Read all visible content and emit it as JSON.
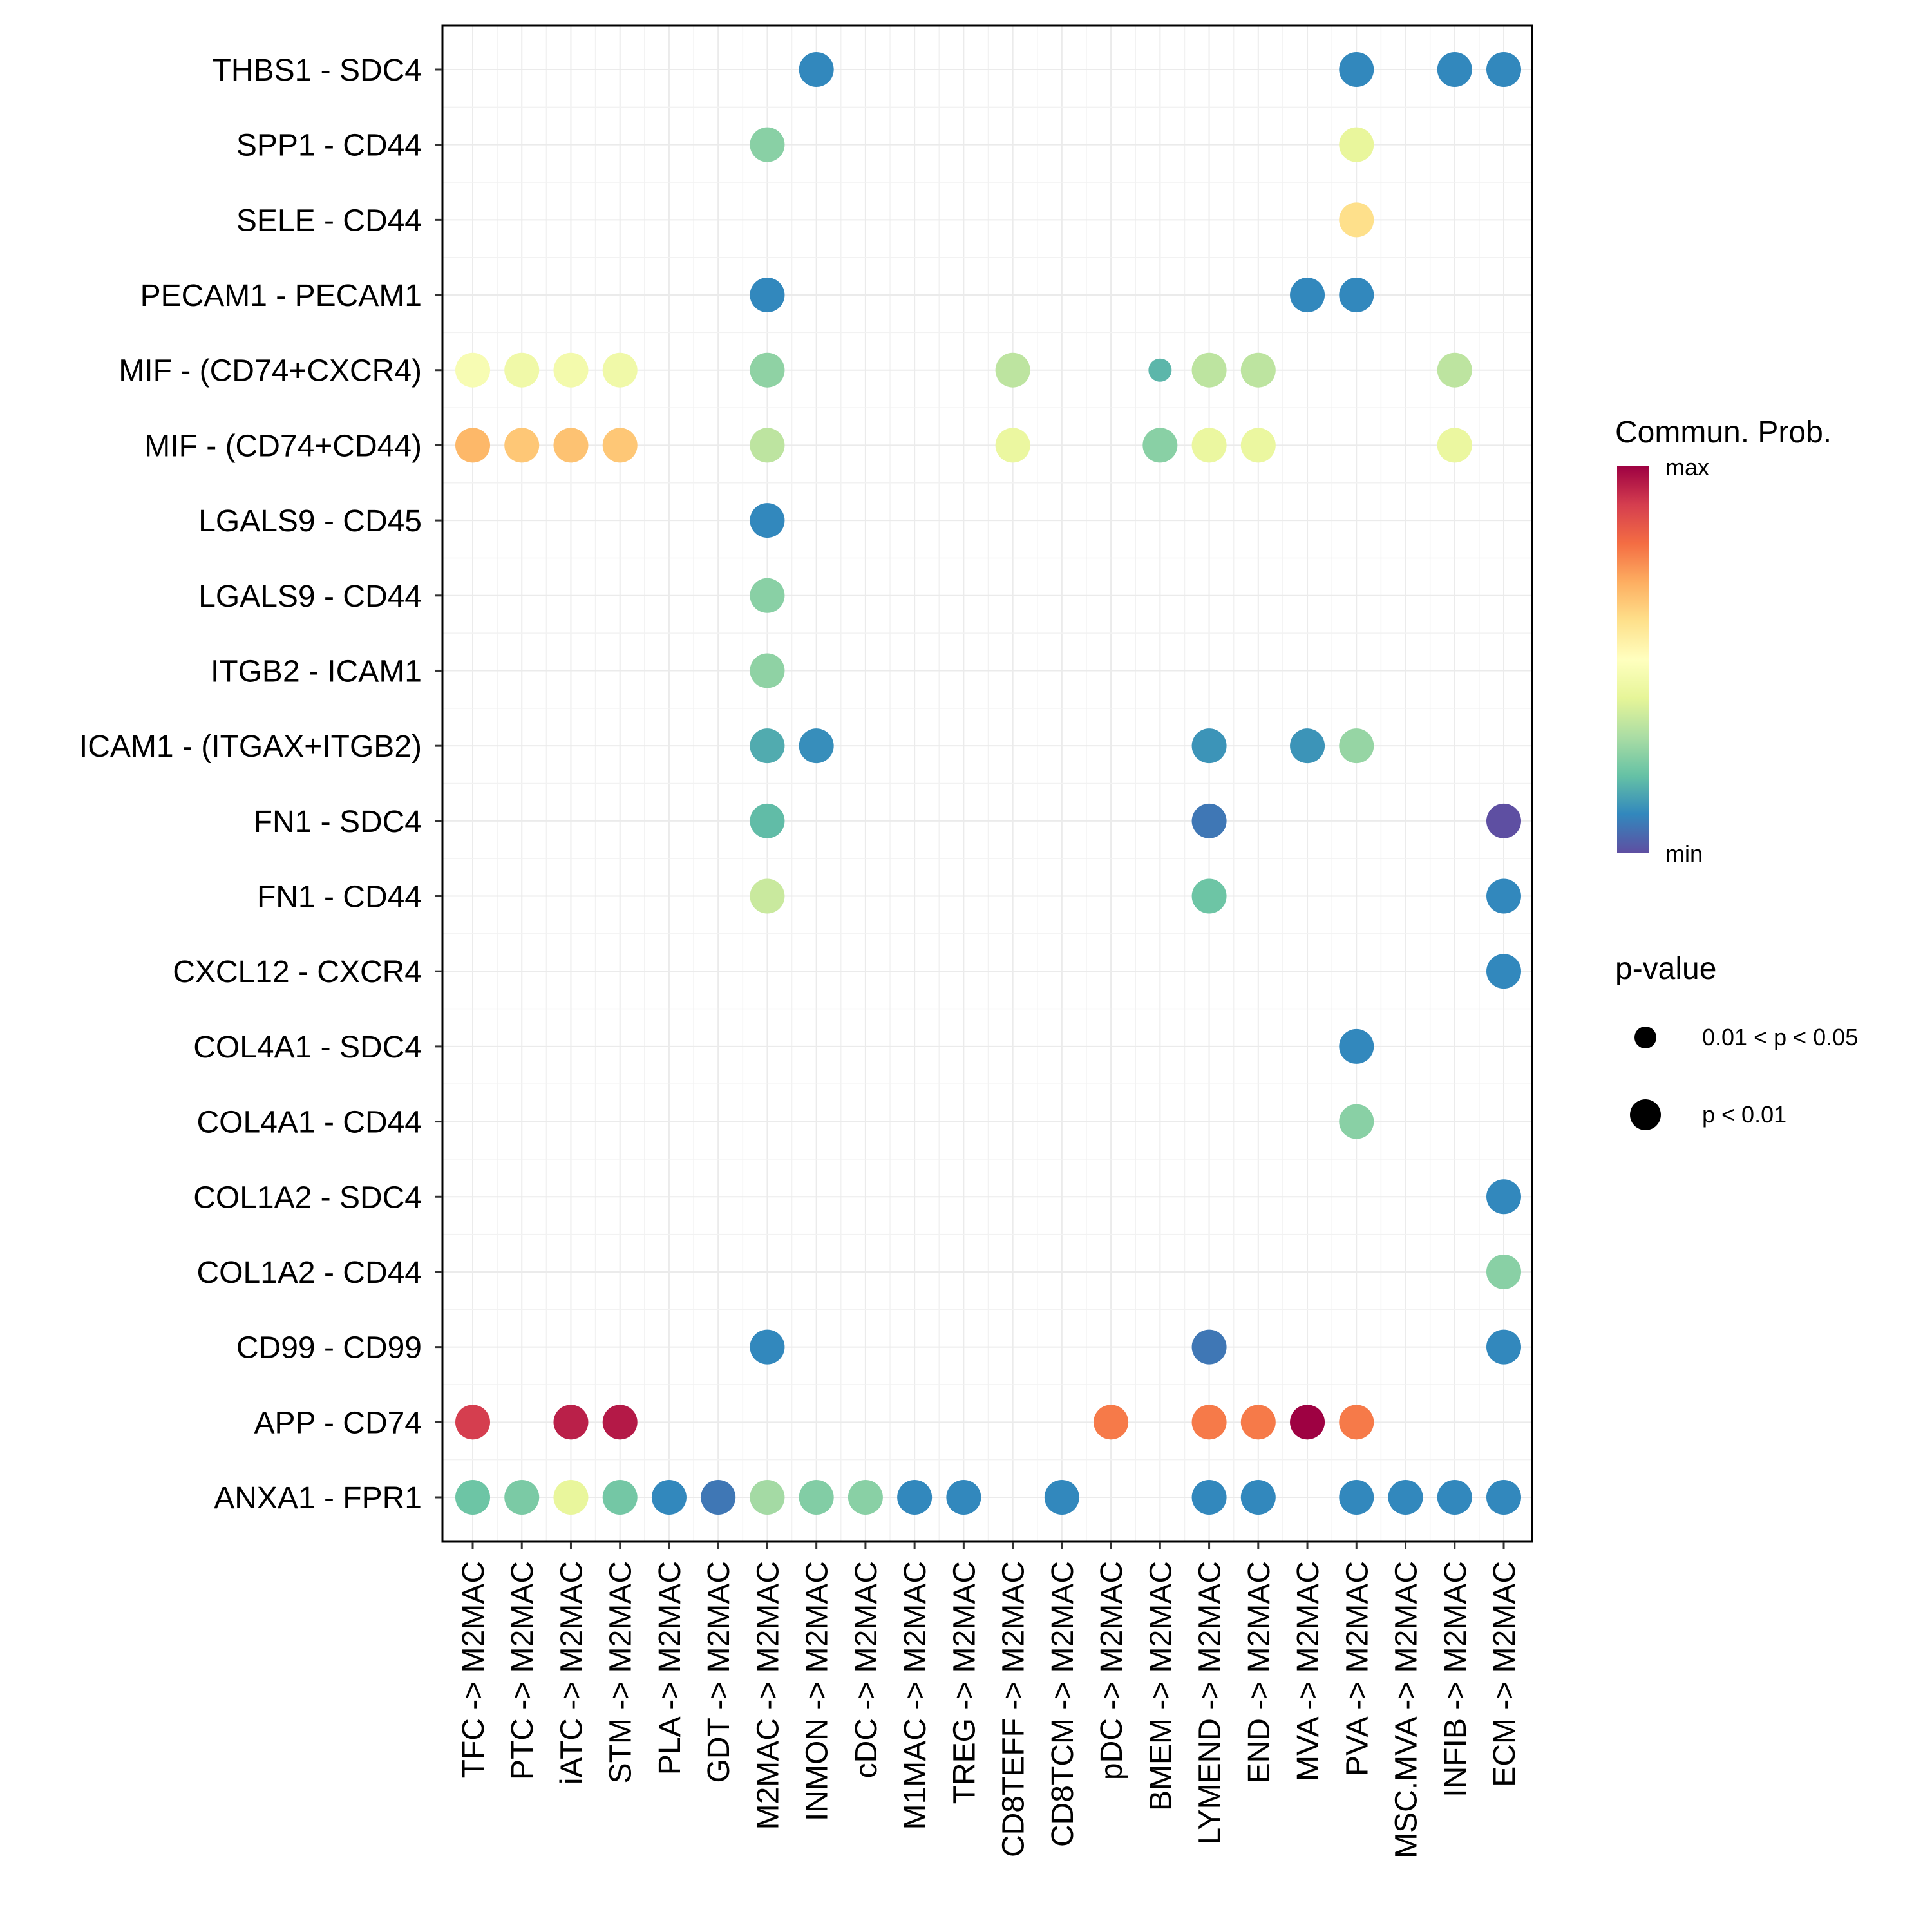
{
  "chart_data": {
    "type": "scatter",
    "subtype": "dot-matrix",
    "title": "",
    "xlabel": "",
    "ylabel": "",
    "grid": true,
    "x_categories": [
      "TFC -> M2MAC",
      "PTC -> M2MAC",
      "iATC -> M2MAC",
      "STM -> M2MAC",
      "PLA -> M2MAC",
      "GDT -> M2MAC",
      "M2MAC -> M2MAC",
      "INMON -> M2MAC",
      "cDC -> M2MAC",
      "M1MAC -> M2MAC",
      "TREG -> M2MAC",
      "CD8TEFF -> M2MAC",
      "CD8TCM -> M2MAC",
      "pDC -> M2MAC",
      "BMEM -> M2MAC",
      "LYMEND -> M2MAC",
      "END -> M2MAC",
      "MVA -> M2MAC",
      "PVA -> M2MAC",
      "MSC.MVA -> M2MAC",
      "INFIB -> M2MAC",
      "ECM -> M2MAC"
    ],
    "y_categories_top_to_bottom": [
      "THBS1 - SDC4",
      "SPP1 - CD44",
      "SELE - CD44",
      "PECAM1 - PECAM1",
      "MIF - (CD74+CXCR4)",
      "MIF - (CD74+CD44)",
      "LGALS9 - CD45",
      "LGALS9 - CD44",
      "ITGB2 - ICAM1",
      "ICAM1 - (ITGAX+ITGB2)",
      "FN1 - SDC4",
      "FN1 - CD44",
      "CXCL12 - CXCR4",
      "COL4A1 - SDC4",
      "COL4A1 - CD44",
      "COL1A2 - SDC4",
      "COL1A2 - CD44",
      "CD99 - CD99",
      "APP - CD74",
      "ANXA1 - FPR1"
    ],
    "value_scale": "relative communication probability, 0 = min, 1 = max",
    "points": [
      {
        "y": "THBS1 - SDC4",
        "x": "INMON -> M2MAC",
        "prob": 0.1,
        "p": "p < 0.01"
      },
      {
        "y": "THBS1 - SDC4",
        "x": "PVA -> M2MAC",
        "prob": 0.1,
        "p": "p < 0.01"
      },
      {
        "y": "THBS1 - SDC4",
        "x": "INFIB -> M2MAC",
        "prob": 0.1,
        "p": "p < 0.01"
      },
      {
        "y": "THBS1 - SDC4",
        "x": "ECM -> M2MAC",
        "prob": 0.1,
        "p": "p < 0.01"
      },
      {
        "y": "SPP1 - CD44",
        "x": "M2MAC -> M2MAC",
        "prob": 0.25,
        "p": "p < 0.01"
      },
      {
        "y": "SPP1 - CD44",
        "x": "PVA -> M2MAC",
        "prob": 0.41,
        "p": "p < 0.01"
      },
      {
        "y": "SELE - CD44",
        "x": "PVA -> M2MAC",
        "prob": 0.6,
        "p": "p < 0.01"
      },
      {
        "y": "PECAM1 - PECAM1",
        "x": "M2MAC -> M2MAC",
        "prob": 0.1,
        "p": "p < 0.01"
      },
      {
        "y": "PECAM1 - PECAM1",
        "x": "MVA -> M2MAC",
        "prob": 0.1,
        "p": "p < 0.01"
      },
      {
        "y": "PECAM1 - PECAM1",
        "x": "PVA -> M2MAC",
        "prob": 0.1,
        "p": "p < 0.01"
      },
      {
        "y": "MIF - (CD74+CXCR4)",
        "x": "TFC -> M2MAC",
        "prob": 0.47,
        "p": "p < 0.01"
      },
      {
        "y": "MIF - (CD74+CXCR4)",
        "x": "PTC -> M2MAC",
        "prob": 0.44,
        "p": "p < 0.01"
      },
      {
        "y": "MIF - (CD74+CXCR4)",
        "x": "iATC -> M2MAC",
        "prob": 0.45,
        "p": "p < 0.01"
      },
      {
        "y": "MIF - (CD74+CXCR4)",
        "x": "STM -> M2MAC",
        "prob": 0.44,
        "p": "p < 0.01"
      },
      {
        "y": "MIF - (CD74+CXCR4)",
        "x": "M2MAC -> M2MAC",
        "prob": 0.26,
        "p": "p < 0.01"
      },
      {
        "y": "MIF - (CD74+CXCR4)",
        "x": "CD8TEFF -> M2MAC",
        "prob": 0.33,
        "p": "p < 0.01"
      },
      {
        "y": "MIF - (CD74+CXCR4)",
        "x": "BMEM -> M2MAC",
        "prob": 0.18,
        "p": "0.01 < p < 0.05"
      },
      {
        "y": "MIF - (CD74+CXCR4)",
        "x": "LYMEND -> M2MAC",
        "prob": 0.33,
        "p": "p < 0.01"
      },
      {
        "y": "MIF - (CD74+CXCR4)",
        "x": "END -> M2MAC",
        "prob": 0.33,
        "p": "p < 0.01"
      },
      {
        "y": "MIF - (CD74+CXCR4)",
        "x": "INFIB -> M2MAC",
        "prob": 0.33,
        "p": "p < 0.01"
      },
      {
        "y": "MIF - (CD74+CD44)",
        "x": "TFC -> M2MAC",
        "prob": 0.68,
        "p": "p < 0.01"
      },
      {
        "y": "MIF - (CD74+CD44)",
        "x": "PTC -> M2MAC",
        "prob": 0.65,
        "p": "p < 0.01"
      },
      {
        "y": "MIF - (CD74+CD44)",
        "x": "iATC -> M2MAC",
        "prob": 0.66,
        "p": "p < 0.01"
      },
      {
        "y": "MIF - (CD74+CD44)",
        "x": "STM -> M2MAC",
        "prob": 0.65,
        "p": "p < 0.01"
      },
      {
        "y": "MIF - (CD74+CD44)",
        "x": "M2MAC -> M2MAC",
        "prob": 0.33,
        "p": "p < 0.01"
      },
      {
        "y": "MIF - (CD74+CD44)",
        "x": "CD8TEFF -> M2MAC",
        "prob": 0.42,
        "p": "p < 0.01"
      },
      {
        "y": "MIF - (CD74+CD44)",
        "x": "BMEM -> M2MAC",
        "prob": 0.25,
        "p": "p < 0.01"
      },
      {
        "y": "MIF - (CD74+CD44)",
        "x": "LYMEND -> M2MAC",
        "prob": 0.42,
        "p": "p < 0.01"
      },
      {
        "y": "MIF - (CD74+CD44)",
        "x": "END -> M2MAC",
        "prob": 0.42,
        "p": "p < 0.01"
      },
      {
        "y": "MIF - (CD74+CD44)",
        "x": "INFIB -> M2MAC",
        "prob": 0.42,
        "p": "p < 0.01"
      },
      {
        "y": "LGALS9 - CD45",
        "x": "M2MAC -> M2MAC",
        "prob": 0.1,
        "p": "p < 0.01"
      },
      {
        "y": "LGALS9 - CD44",
        "x": "M2MAC -> M2MAC",
        "prob": 0.25,
        "p": "p < 0.01"
      },
      {
        "y": "ITGB2 - ICAM1",
        "x": "M2MAC -> M2MAC",
        "prob": 0.26,
        "p": "p < 0.01"
      },
      {
        "y": "ICAM1 - (ITGAX+ITGB2)",
        "x": "M2MAC -> M2MAC",
        "prob": 0.16,
        "p": "p < 0.01"
      },
      {
        "y": "ICAM1 - (ITGAX+ITGB2)",
        "x": "INMON -> M2MAC",
        "prob": 0.11,
        "p": "p < 0.01"
      },
      {
        "y": "ICAM1 - (ITGAX+ITGB2)",
        "x": "LYMEND -> M2MAC",
        "prob": 0.12,
        "p": "p < 0.01"
      },
      {
        "y": "ICAM1 - (ITGAX+ITGB2)",
        "x": "MVA -> M2MAC",
        "prob": 0.12,
        "p": "p < 0.01"
      },
      {
        "y": "ICAM1 - (ITGAX+ITGB2)",
        "x": "PVA -> M2MAC",
        "prob": 0.27,
        "p": "p < 0.01"
      },
      {
        "y": "FN1 - SDC4",
        "x": "M2MAC -> M2MAC",
        "prob": 0.19,
        "p": "p < 0.01"
      },
      {
        "y": "FN1 - SDC4",
        "x": "LYMEND -> M2MAC",
        "prob": 0.07,
        "p": "p < 0.01"
      },
      {
        "y": "FN1 - SDC4",
        "x": "ECM -> M2MAC",
        "prob": 0.0,
        "p": "p < 0.01"
      },
      {
        "y": "FN1 - CD44",
        "x": "M2MAC -> M2MAC",
        "prob": 0.35,
        "p": "p < 0.01"
      },
      {
        "y": "FN1 - CD44",
        "x": "LYMEND -> M2MAC",
        "prob": 0.21,
        "p": "p < 0.01"
      },
      {
        "y": "FN1 - CD44",
        "x": "ECM -> M2MAC",
        "prob": 0.1,
        "p": "p < 0.01"
      },
      {
        "y": "CXCL12 - CXCR4",
        "x": "ECM -> M2MAC",
        "prob": 0.1,
        "p": "p < 0.01"
      },
      {
        "y": "COL4A1 - SDC4",
        "x": "PVA -> M2MAC",
        "prob": 0.1,
        "p": "p < 0.01"
      },
      {
        "y": "COL4A1 - CD44",
        "x": "PVA -> M2MAC",
        "prob": 0.25,
        "p": "p < 0.01"
      },
      {
        "y": "COL1A2 - SDC4",
        "x": "ECM -> M2MAC",
        "prob": 0.1,
        "p": "p < 0.01"
      },
      {
        "y": "COL1A2 - CD44",
        "x": "ECM -> M2MAC",
        "prob": 0.25,
        "p": "p < 0.01"
      },
      {
        "y": "CD99 - CD99",
        "x": "M2MAC -> M2MAC",
        "prob": 0.1,
        "p": "p < 0.01"
      },
      {
        "y": "CD99 - CD99",
        "x": "LYMEND -> M2MAC",
        "prob": 0.07,
        "p": "p < 0.01"
      },
      {
        "y": "CD99 - CD99",
        "x": "ECM -> M2MAC",
        "prob": 0.1,
        "p": "p < 0.01"
      },
      {
        "y": "APP - CD74",
        "x": "TFC -> M2MAC",
        "prob": 0.9,
        "p": "p < 0.01"
      },
      {
        "y": "APP - CD74",
        "x": "iATC -> M2MAC",
        "prob": 0.95,
        "p": "p < 0.01"
      },
      {
        "y": "APP - CD74",
        "x": "STM -> M2MAC",
        "prob": 0.96,
        "p": "p < 0.01"
      },
      {
        "y": "APP - CD74",
        "x": "pDC -> M2MAC",
        "prob": 0.78,
        "p": "p < 0.01"
      },
      {
        "y": "APP - CD74",
        "x": "LYMEND -> M2MAC",
        "prob": 0.78,
        "p": "p < 0.01"
      },
      {
        "y": "APP - CD74",
        "x": "END -> M2MAC",
        "prob": 0.78,
        "p": "p < 0.01"
      },
      {
        "y": "APP - CD74",
        "x": "MVA -> M2MAC",
        "prob": 1.0,
        "p": "p < 0.01"
      },
      {
        "y": "APP - CD74",
        "x": "PVA -> M2MAC",
        "prob": 0.78,
        "p": "p < 0.01"
      },
      {
        "y": "ANXA1 - FPR1",
        "x": "TFC -> M2MAC",
        "prob": 0.21,
        "p": "p < 0.01"
      },
      {
        "y": "ANXA1 - FPR1",
        "x": "PTC -> M2MAC",
        "prob": 0.23,
        "p": "p < 0.01"
      },
      {
        "y": "ANXA1 - FPR1",
        "x": "iATC -> M2MAC",
        "prob": 0.41,
        "p": "p < 0.01"
      },
      {
        "y": "ANXA1 - FPR1",
        "x": "STM -> M2MAC",
        "prob": 0.22,
        "p": "p < 0.01"
      },
      {
        "y": "ANXA1 - FPR1",
        "x": "PLA -> M2MAC",
        "prob": 0.1,
        "p": "p < 0.01"
      },
      {
        "y": "ANXA1 - FPR1",
        "x": "GDT -> M2MAC",
        "prob": 0.07,
        "p": "p < 0.01"
      },
      {
        "y": "ANXA1 - FPR1",
        "x": "M2MAC -> M2MAC",
        "prob": 0.29,
        "p": "p < 0.01"
      },
      {
        "y": "ANXA1 - FPR1",
        "x": "INMON -> M2MAC",
        "prob": 0.24,
        "p": "p < 0.01"
      },
      {
        "y": "ANXA1 - FPR1",
        "x": "cDC -> M2MAC",
        "prob": 0.25,
        "p": "p < 0.01"
      },
      {
        "y": "ANXA1 - FPR1",
        "x": "M1MAC -> M2MAC",
        "prob": 0.1,
        "p": "p < 0.01"
      },
      {
        "y": "ANXA1 - FPR1",
        "x": "TREG -> M2MAC",
        "prob": 0.1,
        "p": "p < 0.01"
      },
      {
        "y": "ANXA1 - FPR1",
        "x": "CD8TCM -> M2MAC",
        "prob": 0.1,
        "p": "p < 0.01"
      },
      {
        "y": "ANXA1 - FPR1",
        "x": "LYMEND -> M2MAC",
        "prob": 0.1,
        "p": "p < 0.01"
      },
      {
        "y": "ANXA1 - FPR1",
        "x": "END -> M2MAC",
        "prob": 0.1,
        "p": "p < 0.01"
      },
      {
        "y": "ANXA1 - FPR1",
        "x": "PVA -> M2MAC",
        "prob": 0.1,
        "p": "p < 0.01"
      },
      {
        "y": "ANXA1 - FPR1",
        "x": "MSC.MVA -> M2MAC",
        "prob": 0.1,
        "p": "p < 0.01"
      },
      {
        "y": "ANXA1 - FPR1",
        "x": "INFIB -> M2MAC",
        "prob": 0.1,
        "p": "p < 0.01"
      },
      {
        "y": "ANXA1 - FPR1",
        "x": "ECM -> M2MAC",
        "prob": 0.1,
        "p": "p < 0.01"
      }
    ],
    "legend": {
      "placement": "right",
      "color": {
        "title": "Commun. Prob.",
        "max_label": "max",
        "min_label": "min",
        "palette_min_to_max": [
          "#5E4FA2",
          "#3288BD",
          "#66C2A5",
          "#ABDDA4",
          "#E6F598",
          "#FFFFBF",
          "#FEE08B",
          "#FDAE61",
          "#F46D43",
          "#D53E4F",
          "#9E0142"
        ]
      },
      "size": {
        "title": "p-value",
        "entries": [
          {
            "label": "0.01 < p < 0.05",
            "key": "0.01 < p < 0.05"
          },
          {
            "label": "p < 0.01",
            "key": "p < 0.01"
          }
        ]
      }
    }
  }
}
